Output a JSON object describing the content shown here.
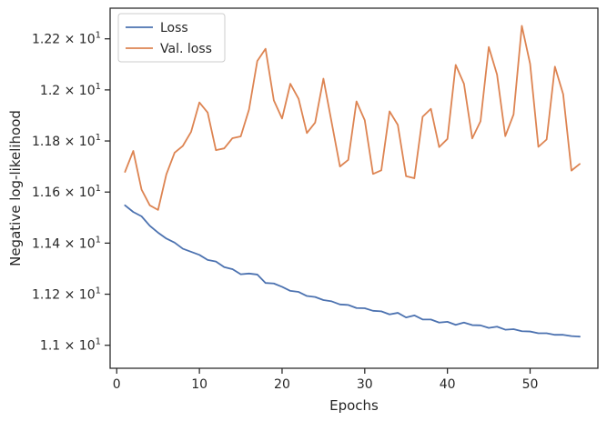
{
  "chart_data": {
    "type": "line",
    "title": "",
    "xlabel": "Epochs",
    "ylabel": "Negative log-likelihood",
    "xlim": [
      -0.8,
      58.2
    ],
    "ylim": [
      10.91,
      12.32
    ],
    "grid": false,
    "legend_position": "top-left",
    "x_ticks": [
      0,
      10,
      20,
      30,
      40,
      50
    ],
    "y_ticks": [
      {
        "value": 11.0,
        "mantissa": "1.1",
        "power": "1"
      },
      {
        "value": 11.2,
        "mantissa": "1.12",
        "power": "1"
      },
      {
        "value": 11.4,
        "mantissa": "1.14",
        "power": "1"
      },
      {
        "value": 11.6,
        "mantissa": "1.16",
        "power": "1"
      },
      {
        "value": 11.8,
        "mantissa": "1.18",
        "power": "1"
      },
      {
        "value": 12.0,
        "mantissa": "1.2",
        "power": "1"
      },
      {
        "value": 12.2,
        "mantissa": "1.22",
        "power": "1"
      }
    ],
    "x": [
      1,
      2,
      3,
      4,
      5,
      6,
      7,
      8,
      9,
      10,
      11,
      12,
      13,
      14,
      15,
      16,
      17,
      18,
      19,
      20,
      21,
      22,
      23,
      24,
      25,
      26,
      27,
      28,
      29,
      30,
      31,
      32,
      33,
      34,
      35,
      36,
      37,
      38,
      39,
      40,
      41,
      42,
      43,
      44,
      45,
      46,
      47,
      48,
      49,
      50,
      51,
      52,
      53,
      54,
      55,
      56
    ],
    "series": [
      {
        "name": "Loss",
        "color": "#4c72b0",
        "values": [
          11.548,
          11.522,
          11.505,
          11.468,
          11.441,
          11.418,
          11.402,
          11.378,
          11.366,
          11.354,
          11.334,
          11.328,
          11.306,
          11.298,
          11.278,
          11.281,
          11.277,
          11.244,
          11.242,
          11.229,
          11.213,
          11.209,
          11.193,
          11.189,
          11.177,
          11.172,
          11.16,
          11.158,
          11.146,
          11.145,
          11.135,
          11.133,
          11.121,
          11.127,
          11.109,
          11.117,
          11.101,
          11.101,
          11.089,
          11.092,
          11.08,
          11.089,
          11.079,
          11.078,
          11.068,
          11.073,
          11.061,
          11.063,
          11.055,
          11.054,
          11.047,
          11.047,
          11.041,
          11.041,
          11.036,
          11.034
        ]
      },
      {
        "name": "Val. loss",
        "color": "#dd8452",
        "values": [
          11.679,
          11.761,
          11.61,
          11.548,
          11.53,
          11.669,
          11.754,
          11.781,
          11.836,
          11.951,
          11.911,
          11.764,
          11.771,
          11.811,
          11.818,
          11.923,
          12.113,
          12.161,
          11.959,
          11.888,
          12.024,
          11.965,
          11.831,
          11.872,
          12.044,
          11.872,
          11.7,
          11.726,
          11.955,
          11.881,
          11.671,
          11.685,
          11.916,
          11.863,
          11.662,
          11.654,
          11.895,
          11.926,
          11.776,
          11.808,
          12.098,
          12.024,
          11.81,
          11.877,
          12.168,
          12.06,
          11.819,
          11.904,
          12.251,
          12.102,
          11.777,
          11.806,
          12.091,
          11.983,
          11.684,
          11.71
        ]
      }
    ]
  }
}
